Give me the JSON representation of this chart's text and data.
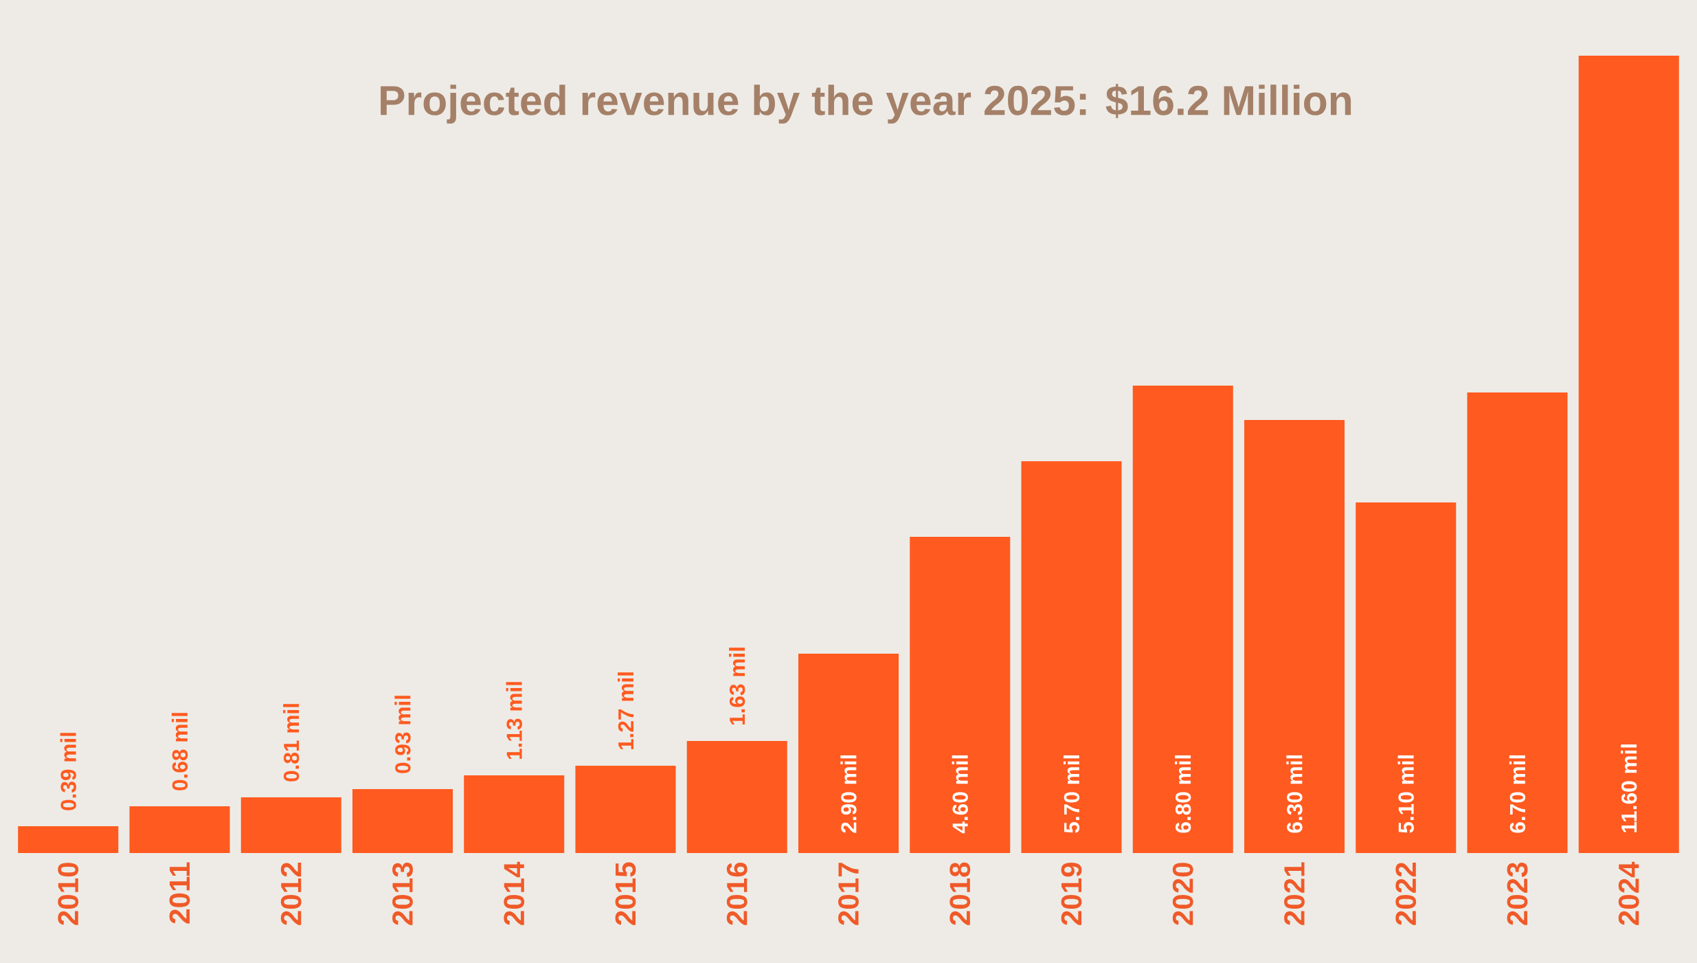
{
  "chart_data": {
    "type": "bar",
    "title": "Projected revenue by the year 2025: $16.2 Million",
    "categories": [
      "2010",
      "2011",
      "2012",
      "2013",
      "2014",
      "2015",
      "2016",
      "2017",
      "2018",
      "2019",
      "2020",
      "2021",
      "2022",
      "2023",
      "2024"
    ],
    "values": [
      0.39,
      0.68,
      0.81,
      0.93,
      1.13,
      1.27,
      1.63,
      2.9,
      4.6,
      5.7,
      6.8,
      6.3,
      5.1,
      6.7,
      11.6
    ],
    "value_labels": [
      "0.39 mil",
      "0.68 mil",
      "0.81 mil",
      "0.93 mil",
      "1.13 mil",
      "1.27 mil",
      "1.63 mil",
      "2.90 mil",
      "4.60 mil",
      "5.70 mil",
      "6.80 mil",
      "6.30 mil",
      "5.10 mil",
      "6.70 mil",
      "11.60 mil"
    ],
    "color": "#ff5a1f"
  }
}
